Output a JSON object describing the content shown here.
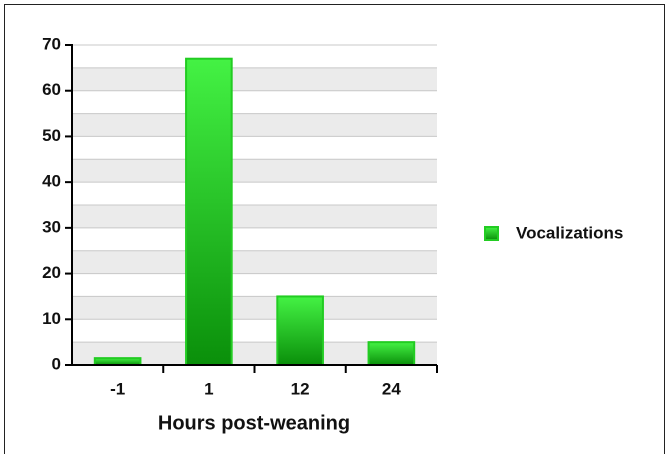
{
  "chart_data": {
    "type": "bar",
    "x_label": "Hours post-weaning",
    "categories": [
      "-1",
      "1",
      "12",
      "24"
    ],
    "series": [
      {
        "name": "Vocalizations",
        "color": "#22cc22",
        "values": [
          1.5,
          67,
          15,
          5
        ]
      }
    ],
    "ylim": [
      0,
      70
    ],
    "yticks": [
      0,
      10,
      20,
      30,
      40,
      50,
      60,
      70
    ],
    "grid": true,
    "legend": "right"
  }
}
